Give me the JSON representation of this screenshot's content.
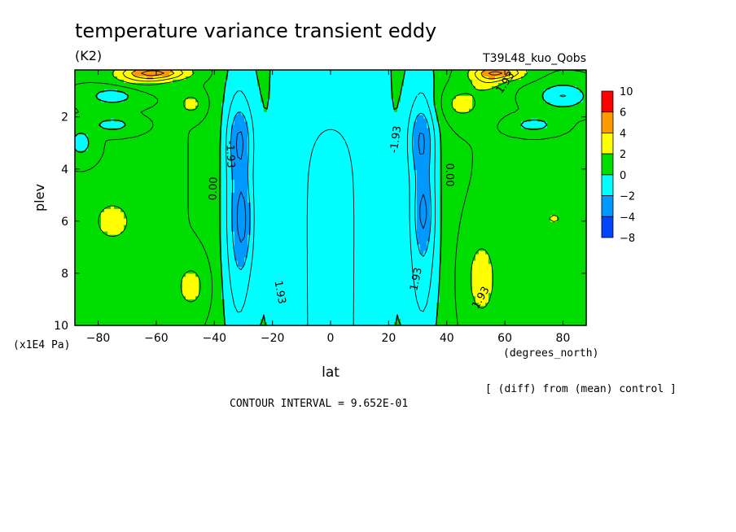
{
  "chart_data": {
    "type": "heatmap",
    "title": "temperature variance transient eddy",
    "units": "(K2)",
    "run_label": "T39L48_kuo_Qobs",
    "xlabel": "lat",
    "x_units": "(degrees_north)",
    "ylabel": "plev",
    "y_units": "(x1E4 Pa)",
    "xlim": [
      -88,
      88
    ],
    "ylim": [
      0.2,
      10
    ],
    "y_inverted": true,
    "x_ticks": [
      -80,
      -60,
      -40,
      -20,
      0,
      20,
      40,
      60,
      80
    ],
    "x_tick_labels": [
      "−80",
      "−60",
      "−40",
      "−20",
      "0",
      "20",
      "40",
      "60",
      "80"
    ],
    "y_ticks": [
      2,
      4,
      6,
      8,
      10
    ],
    "y_tick_labels": [
      "2",
      "4",
      "6",
      "8",
      "10"
    ],
    "diff_note": "[ (diff) from (mean) control ]",
    "contour_interval_text": "CONTOUR INTERVAL = 9.652E-01",
    "contour_labels": [
      "0.00",
      "-1.93",
      "1.93"
    ],
    "colorbar": {
      "labels": [
        "10",
        "6",
        "4",
        "2",
        "0",
        "−2",
        "−4",
        "−8"
      ],
      "levels": [
        {
          "lo": 6,
          "hi": 10,
          "color": "#ff0000"
        },
        {
          "lo": 4,
          "hi": 6,
          "color": "#ff9900"
        },
        {
          "lo": 2,
          "hi": 4,
          "color": "#ffff00"
        },
        {
          "lo": 0,
          "hi": 2,
          "color": "#00dd00"
        },
        {
          "lo": -2,
          "hi": 0,
          "color": "#00ffff"
        },
        {
          "lo": -4,
          "hi": -2,
          "color": "#0099ff"
        },
        {
          "lo": -8,
          "hi": -4,
          "color": "#0044ff"
        }
      ]
    },
    "field": {
      "background_value": 1.0,
      "features": [
        {
          "lat": 0,
          "plev": 5,
          "sig_lat": 17,
          "sig_p": 50,
          "amp": -2.2
        },
        {
          "lat": 0,
          "plev": 0.5,
          "sig_lat": 10,
          "sig_p": 1.6,
          "amp": 0.5
        },
        {
          "lat": -32,
          "plev": 5.5,
          "sig_lat": 4,
          "sig_p": 4,
          "amp": -2.6
        },
        {
          "lat": -31,
          "plev": 2.8,
          "sig_lat": 3,
          "sig_p": 0.9,
          "amp": -1.6
        },
        {
          "lat": -30,
          "plev": 6,
          "sig_lat": 2.2,
          "sig_p": 1.2,
          "amp": -1.5
        },
        {
          "lat": 32,
          "plev": 5.5,
          "sig_lat": 4,
          "sig_p": 4,
          "amp": -2.6
        },
        {
          "lat": 31,
          "plev": 2.8,
          "sig_lat": 3,
          "sig_p": 0.9,
          "amp": -1.6
        },
        {
          "lat": 32,
          "plev": 5.7,
          "sig_lat": 2,
          "sig_p": 0.9,
          "amp": -1.2
        },
        {
          "lat": -75,
          "plev": 6,
          "sig_lat": 5,
          "sig_p": 0.6,
          "amp": 1.5
        },
        {
          "lat": -48,
          "plev": 8.5,
          "sig_lat": 4,
          "sig_p": 0.7,
          "amp": 1.4
        },
        {
          "lat": -48,
          "plev": 1.5,
          "sig_lat": 3,
          "sig_p": 0.3,
          "amp": 1.4
        },
        {
          "lat": -60,
          "plev": 0.3,
          "sig_lat": 8,
          "sig_p": 0.2,
          "amp": 3.5
        },
        {
          "lat": -65,
          "plev": 0.5,
          "sig_lat": 7,
          "sig_p": 0.3,
          "amp": 1.2
        },
        {
          "lat": 52,
          "plev": 8.2,
          "sig_lat": 4,
          "sig_p": 1.2,
          "amp": 1.5
        },
        {
          "lat": 45,
          "plev": 1.5,
          "sig_lat": 6,
          "sig_p": 0.5,
          "amp": 1.3
        },
        {
          "lat": 58,
          "plev": 0.3,
          "sig_lat": 6,
          "sig_p": 0.2,
          "amp": 3.5
        },
        {
          "lat": 54,
          "plev": 0.6,
          "sig_lat": 4,
          "sig_p": 0.3,
          "amp": 1.4
        },
        {
          "lat": 77,
          "plev": 5.9,
          "sig_lat": 2,
          "sig_p": 0.15,
          "amp": 1.3
        },
        {
          "lat": 80,
          "plev": 1.2,
          "sig_lat": 6,
          "sig_p": 0.35,
          "amp": -2.0
        },
        {
          "lat": -75,
          "plev": 1.2,
          "sig_lat": 6,
          "sig_p": 0.25,
          "amp": -1.6
        },
        {
          "lat": -75,
          "plev": 2.3,
          "sig_lat": 5,
          "sig_p": 0.2,
          "amp": -1.5
        },
        {
          "lat": -86,
          "plev": 3,
          "sig_lat": 3,
          "sig_p": 0.4,
          "amp": -1.5
        },
        {
          "lat": 70,
          "plev": 2.3,
          "sig_lat": 5,
          "sig_p": 0.2,
          "amp": -1.5
        }
      ]
    }
  }
}
